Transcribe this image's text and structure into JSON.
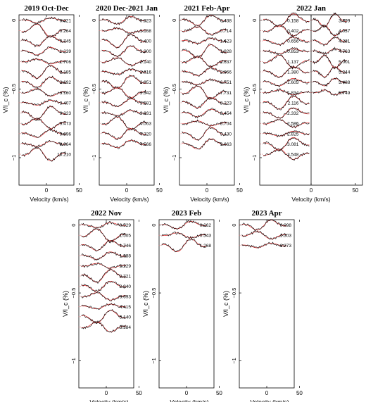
{
  "chart_data": {
    "type": "line",
    "ylabel": "V/I_c (%)",
    "xlabel": "Velocity (km/s)",
    "x_ticks": [
      0,
      50
    ],
    "y_ticks": [
      "0",
      "−0.5",
      "−1"
    ],
    "panels": [
      {
        "title": "2019 Oct-Dec",
        "phases": [
          "0.021",
          "0.264",
          "0.745",
          "1.239",
          "1.706",
          "2.185",
          "2.692",
          "3.160",
          "3.407",
          "9.223",
          "9.473",
          "9.696",
          "9.964",
          "10.210"
        ]
      },
      {
        "title": "2020 Dec-2021 Jan",
        "phases": [
          "0.923",
          "1.168",
          "1.400",
          "1.900",
          "2.140",
          "2.616",
          "2.851",
          "3.342",
          "3.581",
          "3.831",
          "4.063",
          "4.320",
          "4.566"
        ]
      },
      {
        "title": "2021 Feb-Apr",
        "phases": [
          "0.438",
          "0.714",
          "1.423",
          "1.928",
          "2.637",
          "2.866",
          "6.751",
          "7.731",
          "8.223",
          "8.454",
          "8.704",
          "9.430",
          "9.663"
        ]
      },
      {
        "title": "2022 Jan",
        "phases": [
          "0.158",
          "0.402",
          "0.656",
          "0.853",
          "1.137",
          "1.380",
          "1.605",
          "1.834",
          "2.116",
          "2.332",
          "2.586",
          "2.825",
          "3.081",
          "3.548"
        ],
        "phases_col2": [
          "3.799",
          "4.037",
          "4.281",
          "4.763",
          "5.001",
          "5.244",
          "5.488",
          "5.749"
        ]
      },
      {
        "title": "2022 Nov",
        "phases": [
          "0.529",
          "1.505",
          "1.746",
          "1.988",
          "2.229",
          "2.721",
          "2.940",
          "3.693",
          "4.415",
          "5.140",
          "5.384"
        ]
      },
      {
        "title": "2023 Feb",
        "phases": [
          "0.062",
          "0.543",
          "1.268"
        ]
      },
      {
        "title": "2023 Apr",
        "phases": [
          "0.098",
          "1.303",
          "2.273"
        ]
      }
    ]
  }
}
